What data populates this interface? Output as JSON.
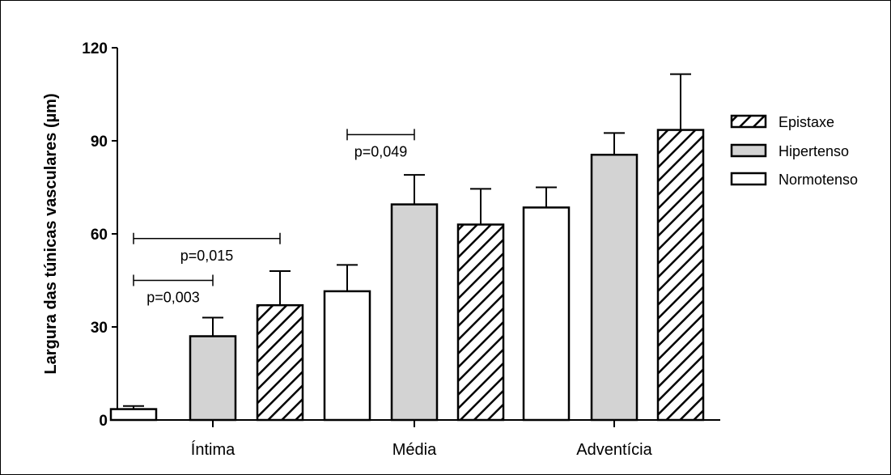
{
  "chart_data": {
    "type": "bar",
    "title": "",
    "ylabel": "Largura das túnicas vasculares (µm)",
    "xlabel": "",
    "ylim": [
      0,
      120
    ],
    "yticks": [
      "0",
      "30",
      "60",
      "90",
      "120"
    ],
    "categories": [
      "Íntima",
      "Média",
      "Adventícia"
    ],
    "series": [
      {
        "name": "Normotenso",
        "values": [
          3.5,
          41.5,
          68.5
        ],
        "errors": [
          1.0,
          8.5,
          6.5
        ],
        "fill": "#ffffff",
        "pattern": "none"
      },
      {
        "name": "Hipertenso",
        "values": [
          27,
          69.5,
          85.5
        ],
        "errors": [
          6.0,
          9.5,
          7.0
        ],
        "fill": "#d3d3d3",
        "pattern": "none"
      },
      {
        "name": "Epistaxe",
        "values": [
          37,
          63,
          93.5
        ],
        "errors": [
          11,
          11.5,
          18
        ],
        "fill": "#ffffff",
        "pattern": "diagonal-hatch"
      }
    ],
    "legend": {
      "position": "right",
      "order": [
        "Epistaxe",
        "Hipertenso",
        "Normotenso"
      ]
    },
    "annotations": [
      {
        "text": "p=0,015",
        "group": "Íntima",
        "from_series": "Normotenso",
        "to_series": "Epistaxe",
        "y": 58.5
      },
      {
        "text": "p=0,003",
        "group": "Íntima",
        "from_series": "Normotenso",
        "to_series": "Hipertenso",
        "y": 45
      },
      {
        "text": "p=0,049",
        "group": "Média",
        "from_series": "Normotenso",
        "to_series": "Hipertenso",
        "y": 92
      }
    ],
    "grid": false
  }
}
